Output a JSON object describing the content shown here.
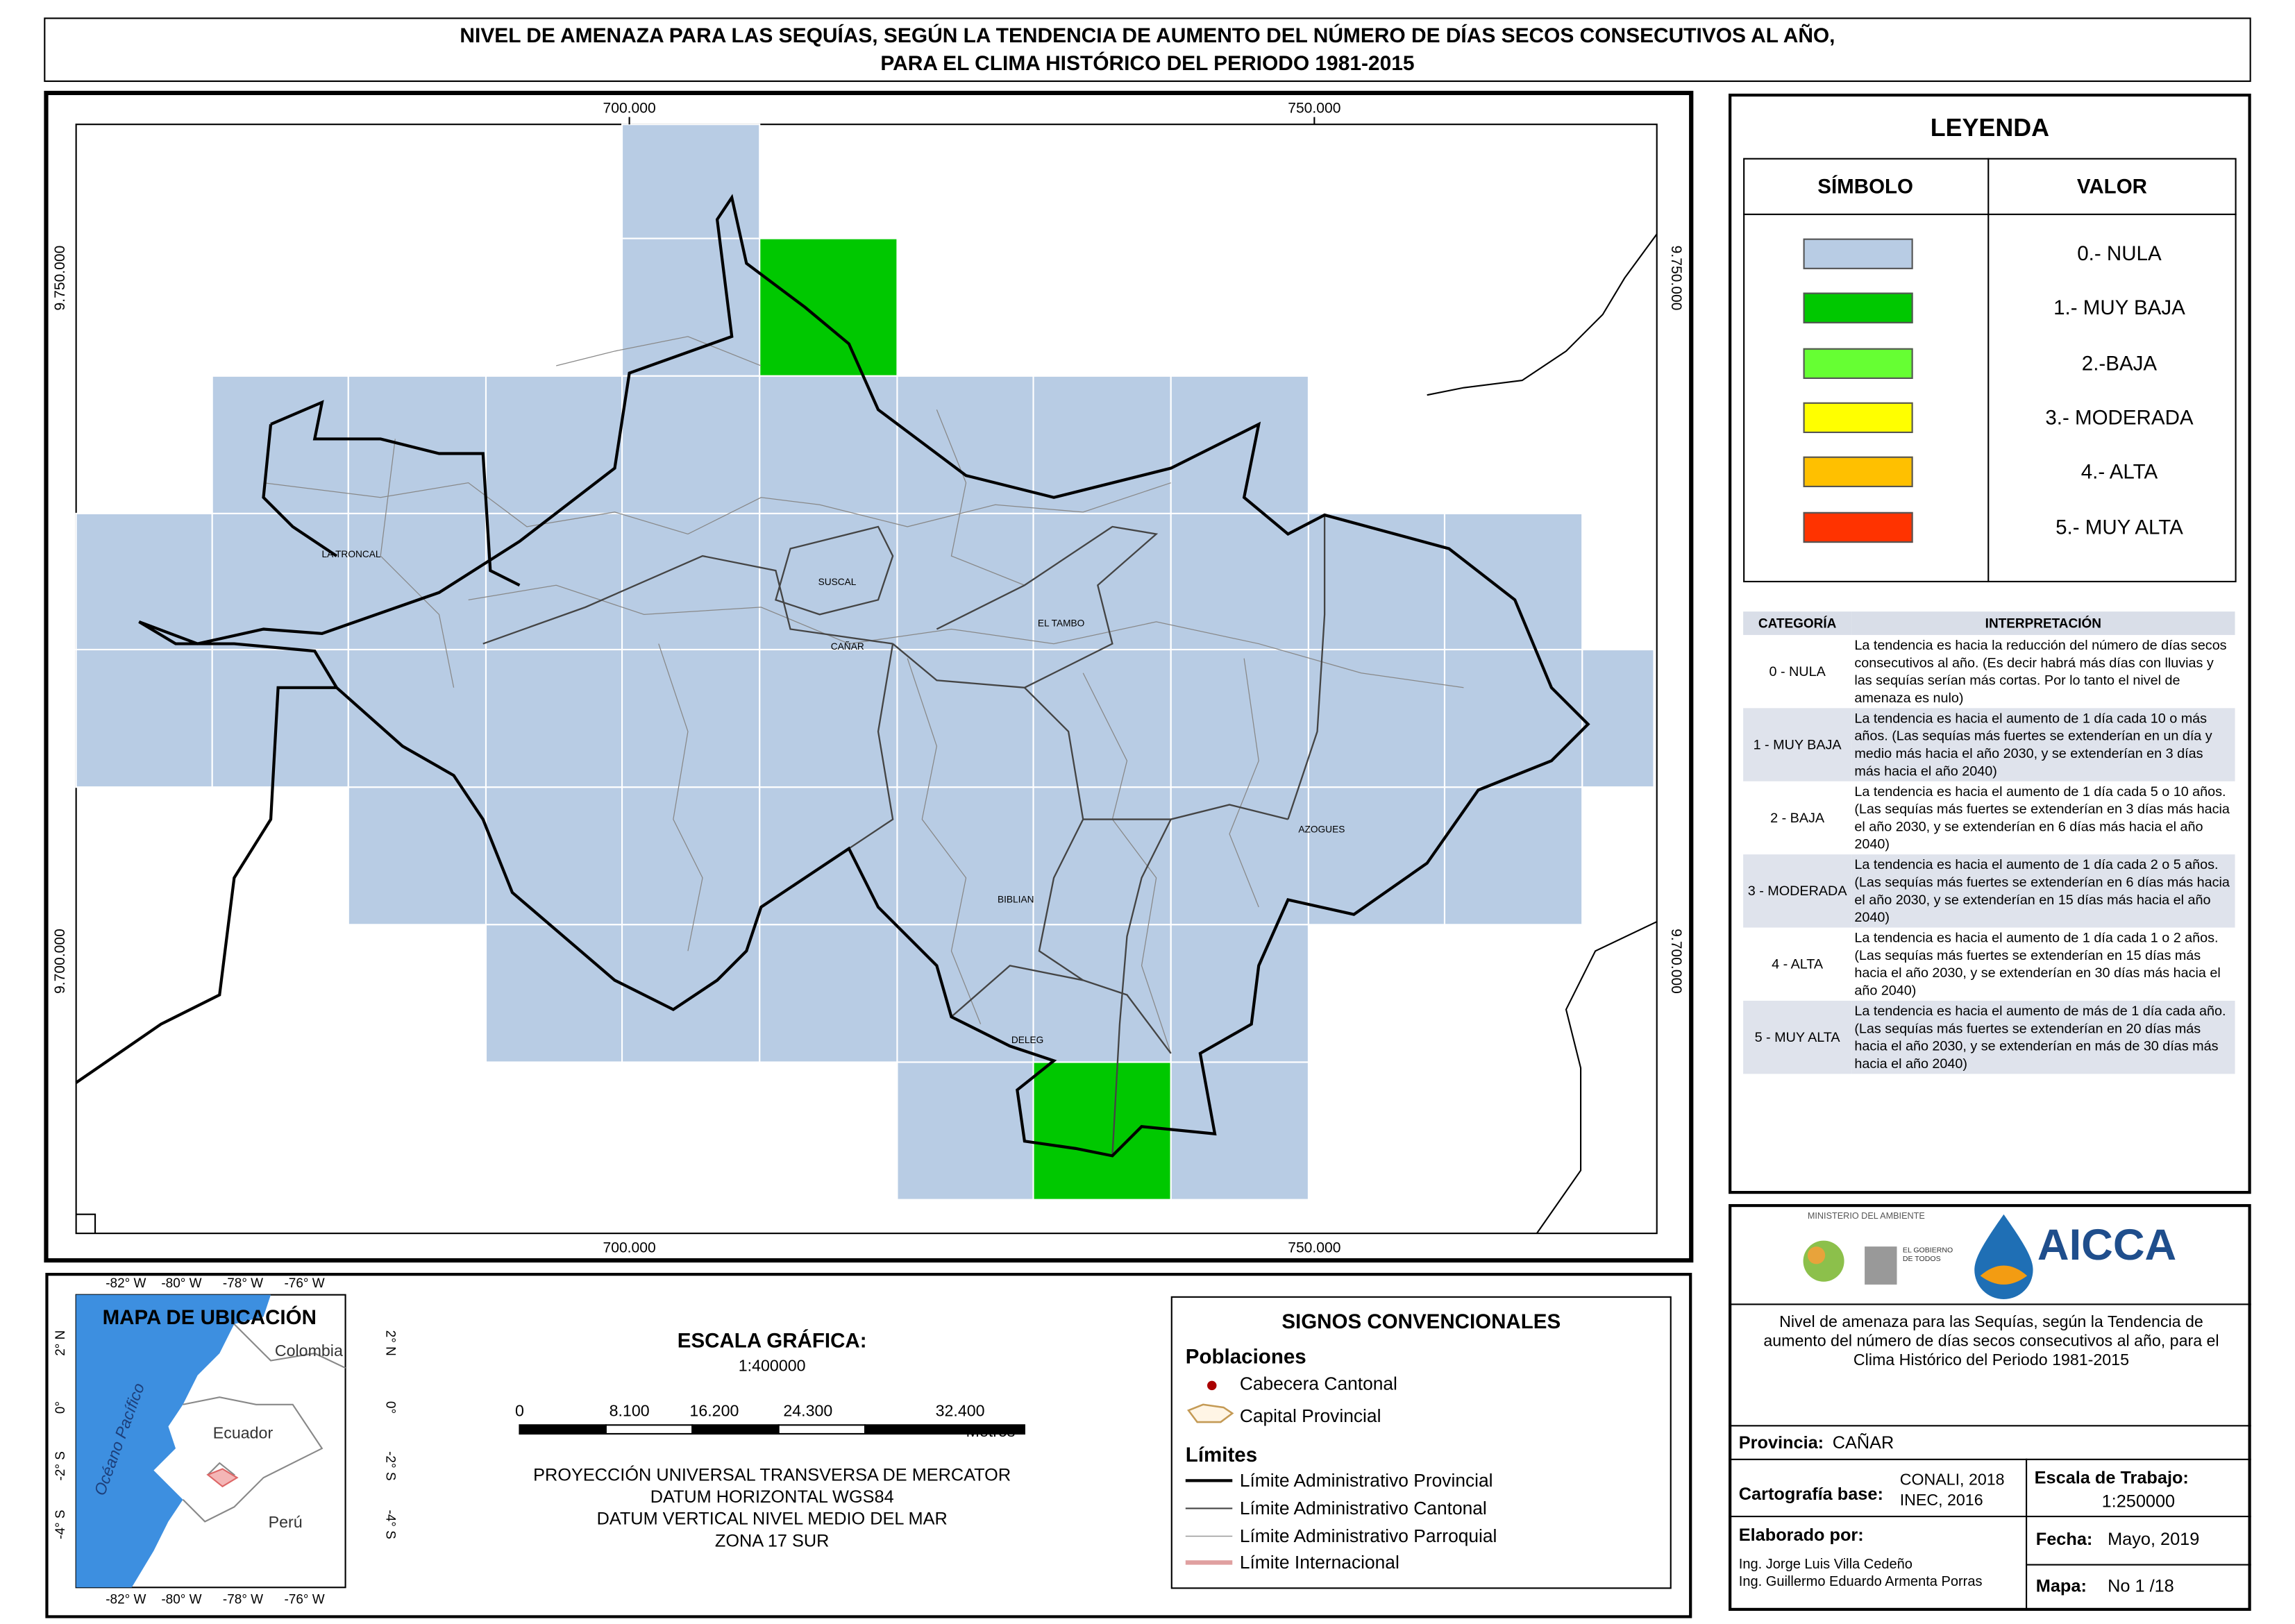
{
  "header": {
    "title_line1": "NIVEL DE AMENAZA PARA LAS SEQUÍAS, SEGÚN LA TENDENCIA DE AUMENTO DEL NÚMERO DE DÍAS SECOS CONSECUTIVOS AL AÑO,",
    "title_line2": "PARA EL CLIMA HISTÓRICO DEL PERIODO 1981-2015"
  },
  "map": {
    "x_labels": [
      "700.000",
      "750.000"
    ],
    "y_labels": [
      "9.750.000",
      "9.700.000"
    ],
    "places": [
      "LA TRONCAL",
      "SUSCAL",
      "CAÑAR",
      "EL TAMBO",
      "AZOGUES",
      "BIBLIAN",
      "DELEG"
    ]
  },
  "legend": {
    "title": "LEYENDA",
    "col_symbol": "SÍMBOLO",
    "col_value": "VALOR",
    "items": [
      {
        "label": "0.- NULA",
        "color": "#b8cce4"
      },
      {
        "label": "1.- MUY BAJA",
        "color": "#00c800"
      },
      {
        "label": "2.-BAJA",
        "color": "#66ff33"
      },
      {
        "label": "3.- MODERADA",
        "color": "#ffff00"
      },
      {
        "label": "4.- ALTA",
        "color": "#ffc000"
      },
      {
        "label": "5.- MUY ALTA",
        "color": "#ff3300"
      }
    ]
  },
  "interpretation": {
    "headers": [
      "CATEGORÍA",
      "INTERPRETACIÓN"
    ],
    "rows": [
      [
        "0 - NULA",
        "La tendencia es hacia la reducción del número de días secos consecutivos al año. (Es decir habrá más días con lluvias y las sequías serían más cortas. Por lo tanto el nivel de amenaza es nulo)"
      ],
      [
        "1 - MUY BAJA",
        "La tendencia es hacia el aumento de 1 día cada 10 o más años. (Las sequías más fuertes se extenderían en un día y medio más hacia el año 2030, y se extenderían en 3 días más hacia el año 2040)"
      ],
      [
        "2 - BAJA",
        "La tendencia es hacia el aumento de 1 día cada 5 o 10 años. (Las sequías más fuertes se extenderían en 3 días más hacia el año 2030, y se extenderían en 6 días más hacia el año 2040)"
      ],
      [
        "3 - MODERADA",
        "La tendencia es hacia el aumento de 1 día cada 2 o 5 años. (Las sequías más fuertes se extenderían en 6 días más hacia el año 2030, y se extenderían en 15 días más hacia el año 2040)"
      ],
      [
        "4 - ALTA",
        "La tendencia es hacia el aumento de 1 día cada 1 o 2 años. (Las sequías más fuertes se extenderían en 15 días más hacia el año 2030, y se extenderían en 30 días más hacia el año 2040)"
      ],
      [
        "5 - MUY ALTA",
        "La tendencia es hacia el aumento de más de 1 día cada año. (Las sequías más fuertes se extenderían en 20 días más hacia el año 2030, y se extenderían en más de 30 días más hacia el año 2040)"
      ]
    ]
  },
  "location_map": {
    "title": "MAPA DE UBICACIÓN",
    "lon_labels": [
      "-82° W",
      "-80° W",
      "-78° W",
      "-76° W"
    ],
    "lat_labels": [
      "2° N",
      "0°",
      "-2° S",
      "-4° S"
    ],
    "countries": [
      "Colombia",
      "Ecuador",
      "Perú"
    ],
    "ocean": "Océano Pacífico"
  },
  "scale": {
    "title": "ESCALA GRÁFICA:",
    "ratio": "1:400000",
    "ticks": [
      "0",
      "8.100",
      "16.200",
      "24.300",
      "32.400"
    ],
    "unit": "Metros",
    "projection": [
      "PROYECCIÓN UNIVERSAL TRANSVERSA DE MERCATOR",
      "DATUM HORIZONTAL WGS84",
      "DATUM VERTICAL NIVEL MEDIO DEL MAR",
      "ZONA 17 SUR"
    ]
  },
  "signs": {
    "title": "SIGNOS CONVENCIONALES",
    "populations_title": "Poblaciones",
    "populations": [
      "Cabecera Cantonal",
      "Capital Provincial"
    ],
    "limits_title": "Límites",
    "limits": [
      "Límite Administrativo Provincial",
      "Límite Administrativo Cantonal",
      "Límite Administrativo Parroquial",
      "Límite Internacional"
    ]
  },
  "info": {
    "ministry": "MINISTERIO DEL AMBIENTE",
    "government": "EL GOBIERNO DE TODOS",
    "brand": "AICCA",
    "description": "Nivel de amenaza para las Sequías, según la Tendencia de aumento del número de días secos consecutivos al año, para el Clima Histórico del Periodo 1981-2015",
    "provincia_label": "Provincia:",
    "provincia": "CAÑAR",
    "cartografia_label": "Cartografía base:",
    "cartografia": [
      "CONALI, 2018",
      "INEC, 2016"
    ],
    "escala_label": "Escala de Trabajo:",
    "escala": "1:250000",
    "elaborado_label": "Elaborado por:",
    "authors": [
      "Ing. Jorge Luis Villa Cedeño",
      "Ing. Guillermo Eduardo Armenta Porras"
    ],
    "fecha_label": "Fecha:",
    "fecha": "Mayo, 2019",
    "mapa_label": "Mapa:",
    "mapa": "No 1 /18"
  }
}
